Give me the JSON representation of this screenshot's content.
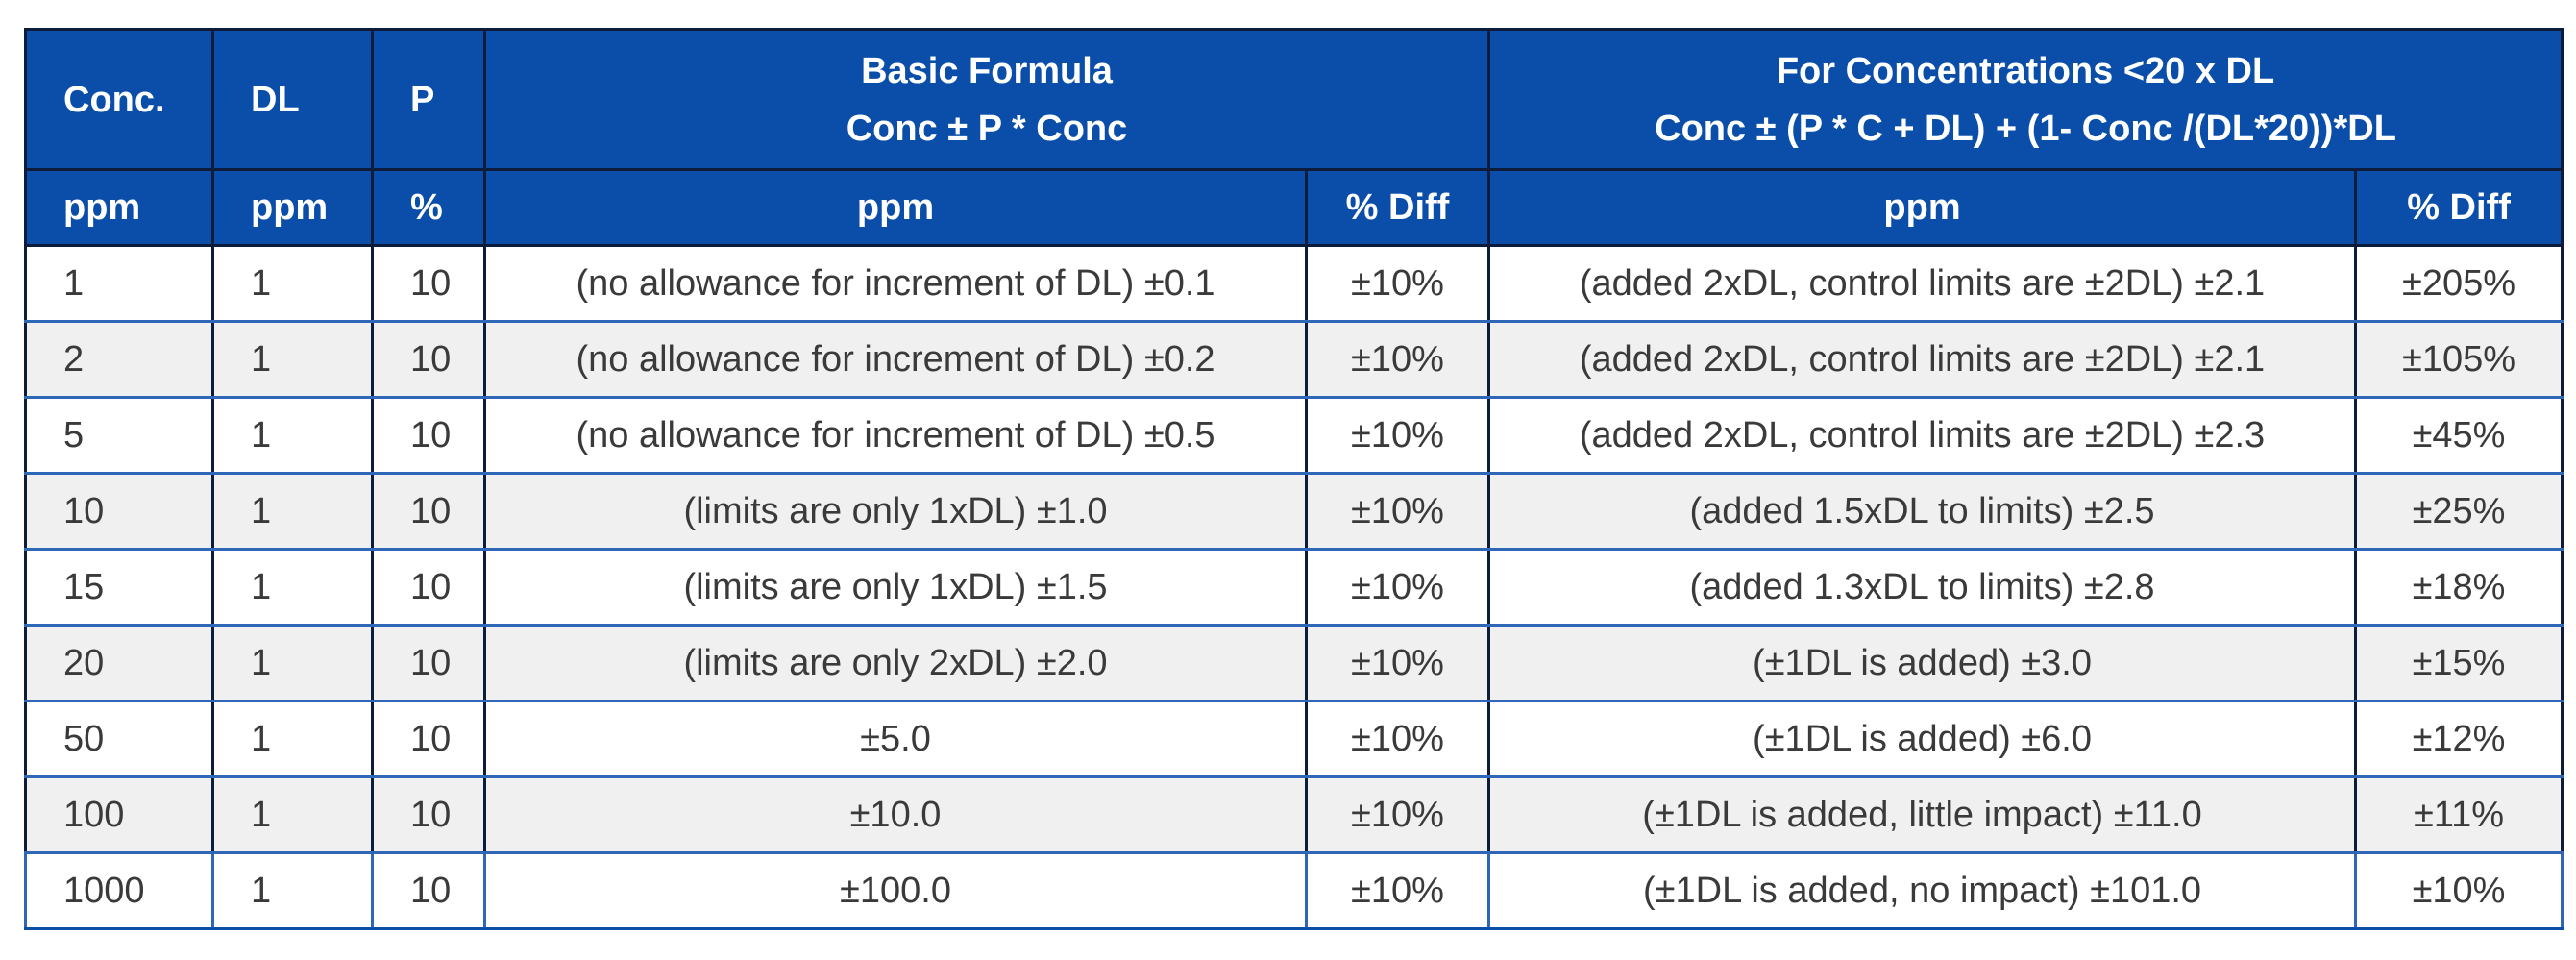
{
  "header": {
    "conc_label": "Conc.",
    "dl_label": "DL",
    "p_label": "P",
    "basic_formula_line1": "Basic Formula",
    "basic_formula_line2": "Conc ± P * Conc",
    "low_conc_line1": "For Concentrations <20 x DL",
    "low_conc_line2": "Conc ± (P * C + DL) + (1- Conc /(DL*20))*DL"
  },
  "units": [
    "ppm",
    "ppm",
    "%",
    "ppm",
    "% Diff",
    "ppm",
    "% Diff"
  ],
  "rows": [
    {
      "conc": "1",
      "dl": "1",
      "p": "10",
      "basic": "(no allowance for increment of DL) ±0.1",
      "basic_diff": "±10%",
      "low": "(added 2xDL, control limits are ±2DL) ±2.1",
      "low_diff": "±205%"
    },
    {
      "conc": "2",
      "dl": "1",
      "p": "10",
      "basic": "(no allowance for increment of DL) ±0.2",
      "basic_diff": "±10%",
      "low": "(added 2xDL, control limits are ±2DL) ±2.1",
      "low_diff": "±105%"
    },
    {
      "conc": "5",
      "dl": "1",
      "p": "10",
      "basic": "(no allowance for increment of DL) ±0.5",
      "basic_diff": "±10%",
      "low": "(added 2xDL, control limits are ±2DL) ±2.3",
      "low_diff": "±45%"
    },
    {
      "conc": "10",
      "dl": "1",
      "p": "10",
      "basic": "(limits are only 1xDL) ±1.0",
      "basic_diff": "±10%",
      "low": "(added 1.5xDL to limits) ±2.5",
      "low_diff": "±25%"
    },
    {
      "conc": "15",
      "dl": "1",
      "p": "10",
      "basic": "(limits are only 1xDL) ±1.5",
      "basic_diff": "±10%",
      "low": "(added 1.3xDL to limits) ±2.8",
      "low_diff": "±18%"
    },
    {
      "conc": "20",
      "dl": "1",
      "p": "10",
      "basic": "(limits are only 2xDL) ±2.0",
      "basic_diff": "±10%",
      "low": "(±1DL is added) ±3.0",
      "low_diff": "±15%"
    },
    {
      "conc": "50",
      "dl": "1",
      "p": "10",
      "basic": "±5.0",
      "basic_diff": "±10%",
      "low": "(±1DL is added) ±6.0",
      "low_diff": "±12%"
    },
    {
      "conc": "100",
      "dl": "1",
      "p": "10",
      "basic": "±10.0",
      "basic_diff": "±10%",
      "low": "(±1DL is added, little impact) ±11.0",
      "low_diff": "±11%"
    },
    {
      "conc": "1000",
      "dl": "1",
      "p": "10",
      "basic": "±100.0",
      "basic_diff": "±10%",
      "low": "(±1DL is added, no impact) ±101.0",
      "low_diff": "±10%"
    }
  ]
}
